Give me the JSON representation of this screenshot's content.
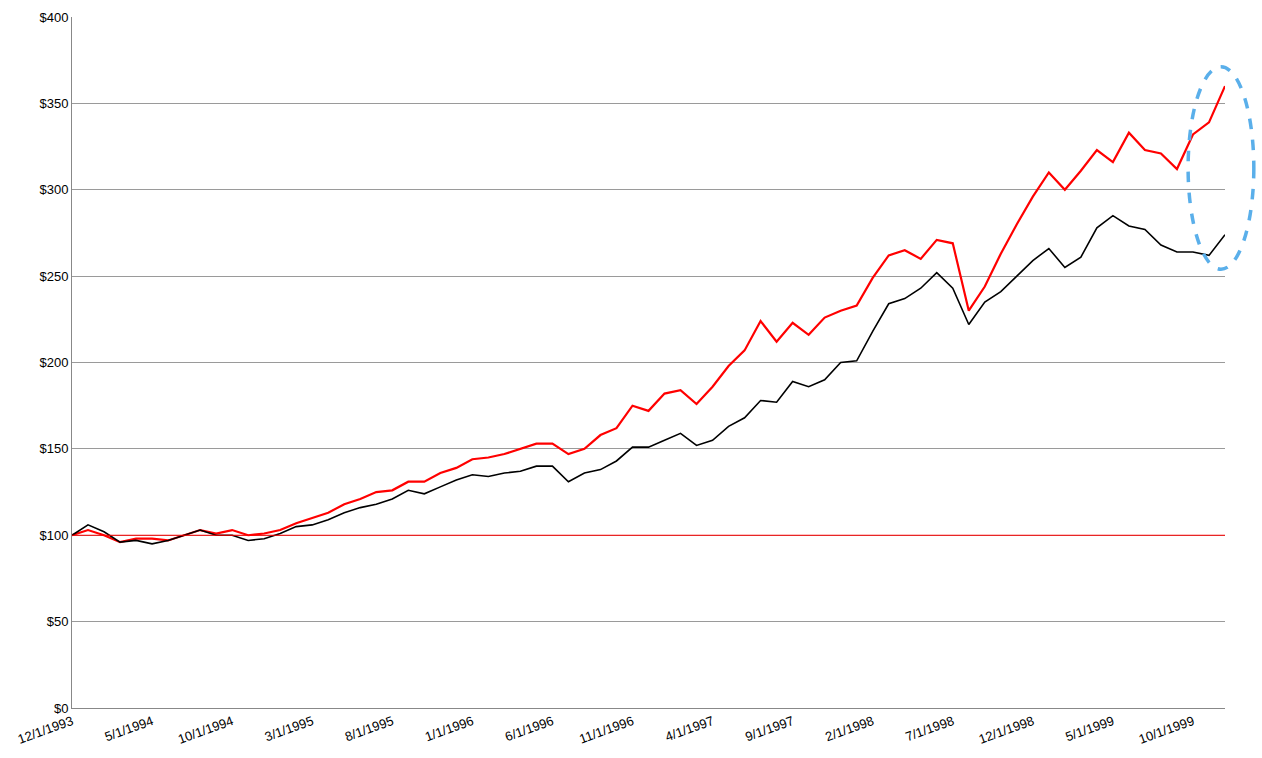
{
  "chart_data": {
    "type": "line",
    "categories": [
      "12/1/1993",
      null,
      null,
      null,
      null,
      "5/1/1994",
      null,
      null,
      null,
      null,
      "10/1/1994",
      null,
      null,
      null,
      null,
      "3/1/1995",
      null,
      null,
      null,
      null,
      "8/1/1995",
      null,
      null,
      null,
      null,
      "1/1/1996",
      null,
      null,
      null,
      null,
      "6/1/1996",
      null,
      null,
      null,
      null,
      "11/1/1996",
      null,
      null,
      null,
      null,
      "4/1/1997",
      null,
      null,
      null,
      null,
      "9/1/1997",
      null,
      null,
      null,
      null,
      "2/1/1998",
      null,
      null,
      null,
      null,
      "7/1/1998",
      null,
      null,
      null,
      null,
      "12/1/1998",
      null,
      null,
      null,
      null,
      "5/1/1999",
      null,
      null,
      null,
      null,
      "10/1/1999",
      null,
      null
    ],
    "series": [
      {
        "color": "#ff0000",
        "values": [
          100,
          103,
          100,
          96,
          98,
          98,
          97,
          100,
          103,
          101,
          103,
          100,
          101,
          103,
          107,
          110,
          113,
          118,
          121,
          125,
          126,
          131,
          131,
          136,
          139,
          144,
          145,
          147,
          150,
          153,
          153,
          147,
          150,
          158,
          162,
          175,
          172,
          182,
          184,
          176,
          186,
          198,
          207,
          224,
          212,
          223,
          216,
          226,
          230,
          233,
          249,
          262,
          265,
          260,
          271,
          269,
          230,
          244,
          263,
          280,
          296,
          310,
          300,
          311,
          323,
          316,
          333,
          323,
          321,
          312,
          332,
          339,
          360
        ]
      },
      {
        "color": "#000000",
        "values": [
          100,
          106,
          102,
          96,
          97,
          95,
          97,
          100,
          103,
          100,
          100,
          97,
          98,
          101,
          105,
          106,
          109,
          113,
          116,
          118,
          121,
          126,
          124,
          128,
          132,
          135,
          134,
          136,
          137,
          140,
          140,
          131,
          136,
          138,
          143,
          151,
          151,
          155,
          159,
          152,
          155,
          163,
          168,
          178,
          177,
          189,
          186,
          190,
          200,
          201,
          218,
          234,
          237,
          243,
          252,
          243,
          222,
          235,
          241,
          250,
          259,
          266,
          255,
          261,
          278,
          285,
          279,
          277,
          268,
          264,
          264,
          262,
          274
        ]
      }
    ],
    "ylim": [
      0,
      400
    ],
    "yticks": [
      {
        "value": 0,
        "label": "$0"
      },
      {
        "value": 50,
        "label": "$50"
      },
      {
        "value": 100,
        "label": "$100"
      },
      {
        "value": 150,
        "label": "$150"
      },
      {
        "value": 200,
        "label": "$200"
      },
      {
        "value": 250,
        "label": "$250"
      },
      {
        "value": 300,
        "label": "$300"
      },
      {
        "value": 350,
        "label": "$350"
      },
      {
        "value": 400,
        "label": "$400"
      }
    ],
    "grid": true,
    "reference_line": {
      "value": 100,
      "color": "#ff0000"
    }
  }
}
